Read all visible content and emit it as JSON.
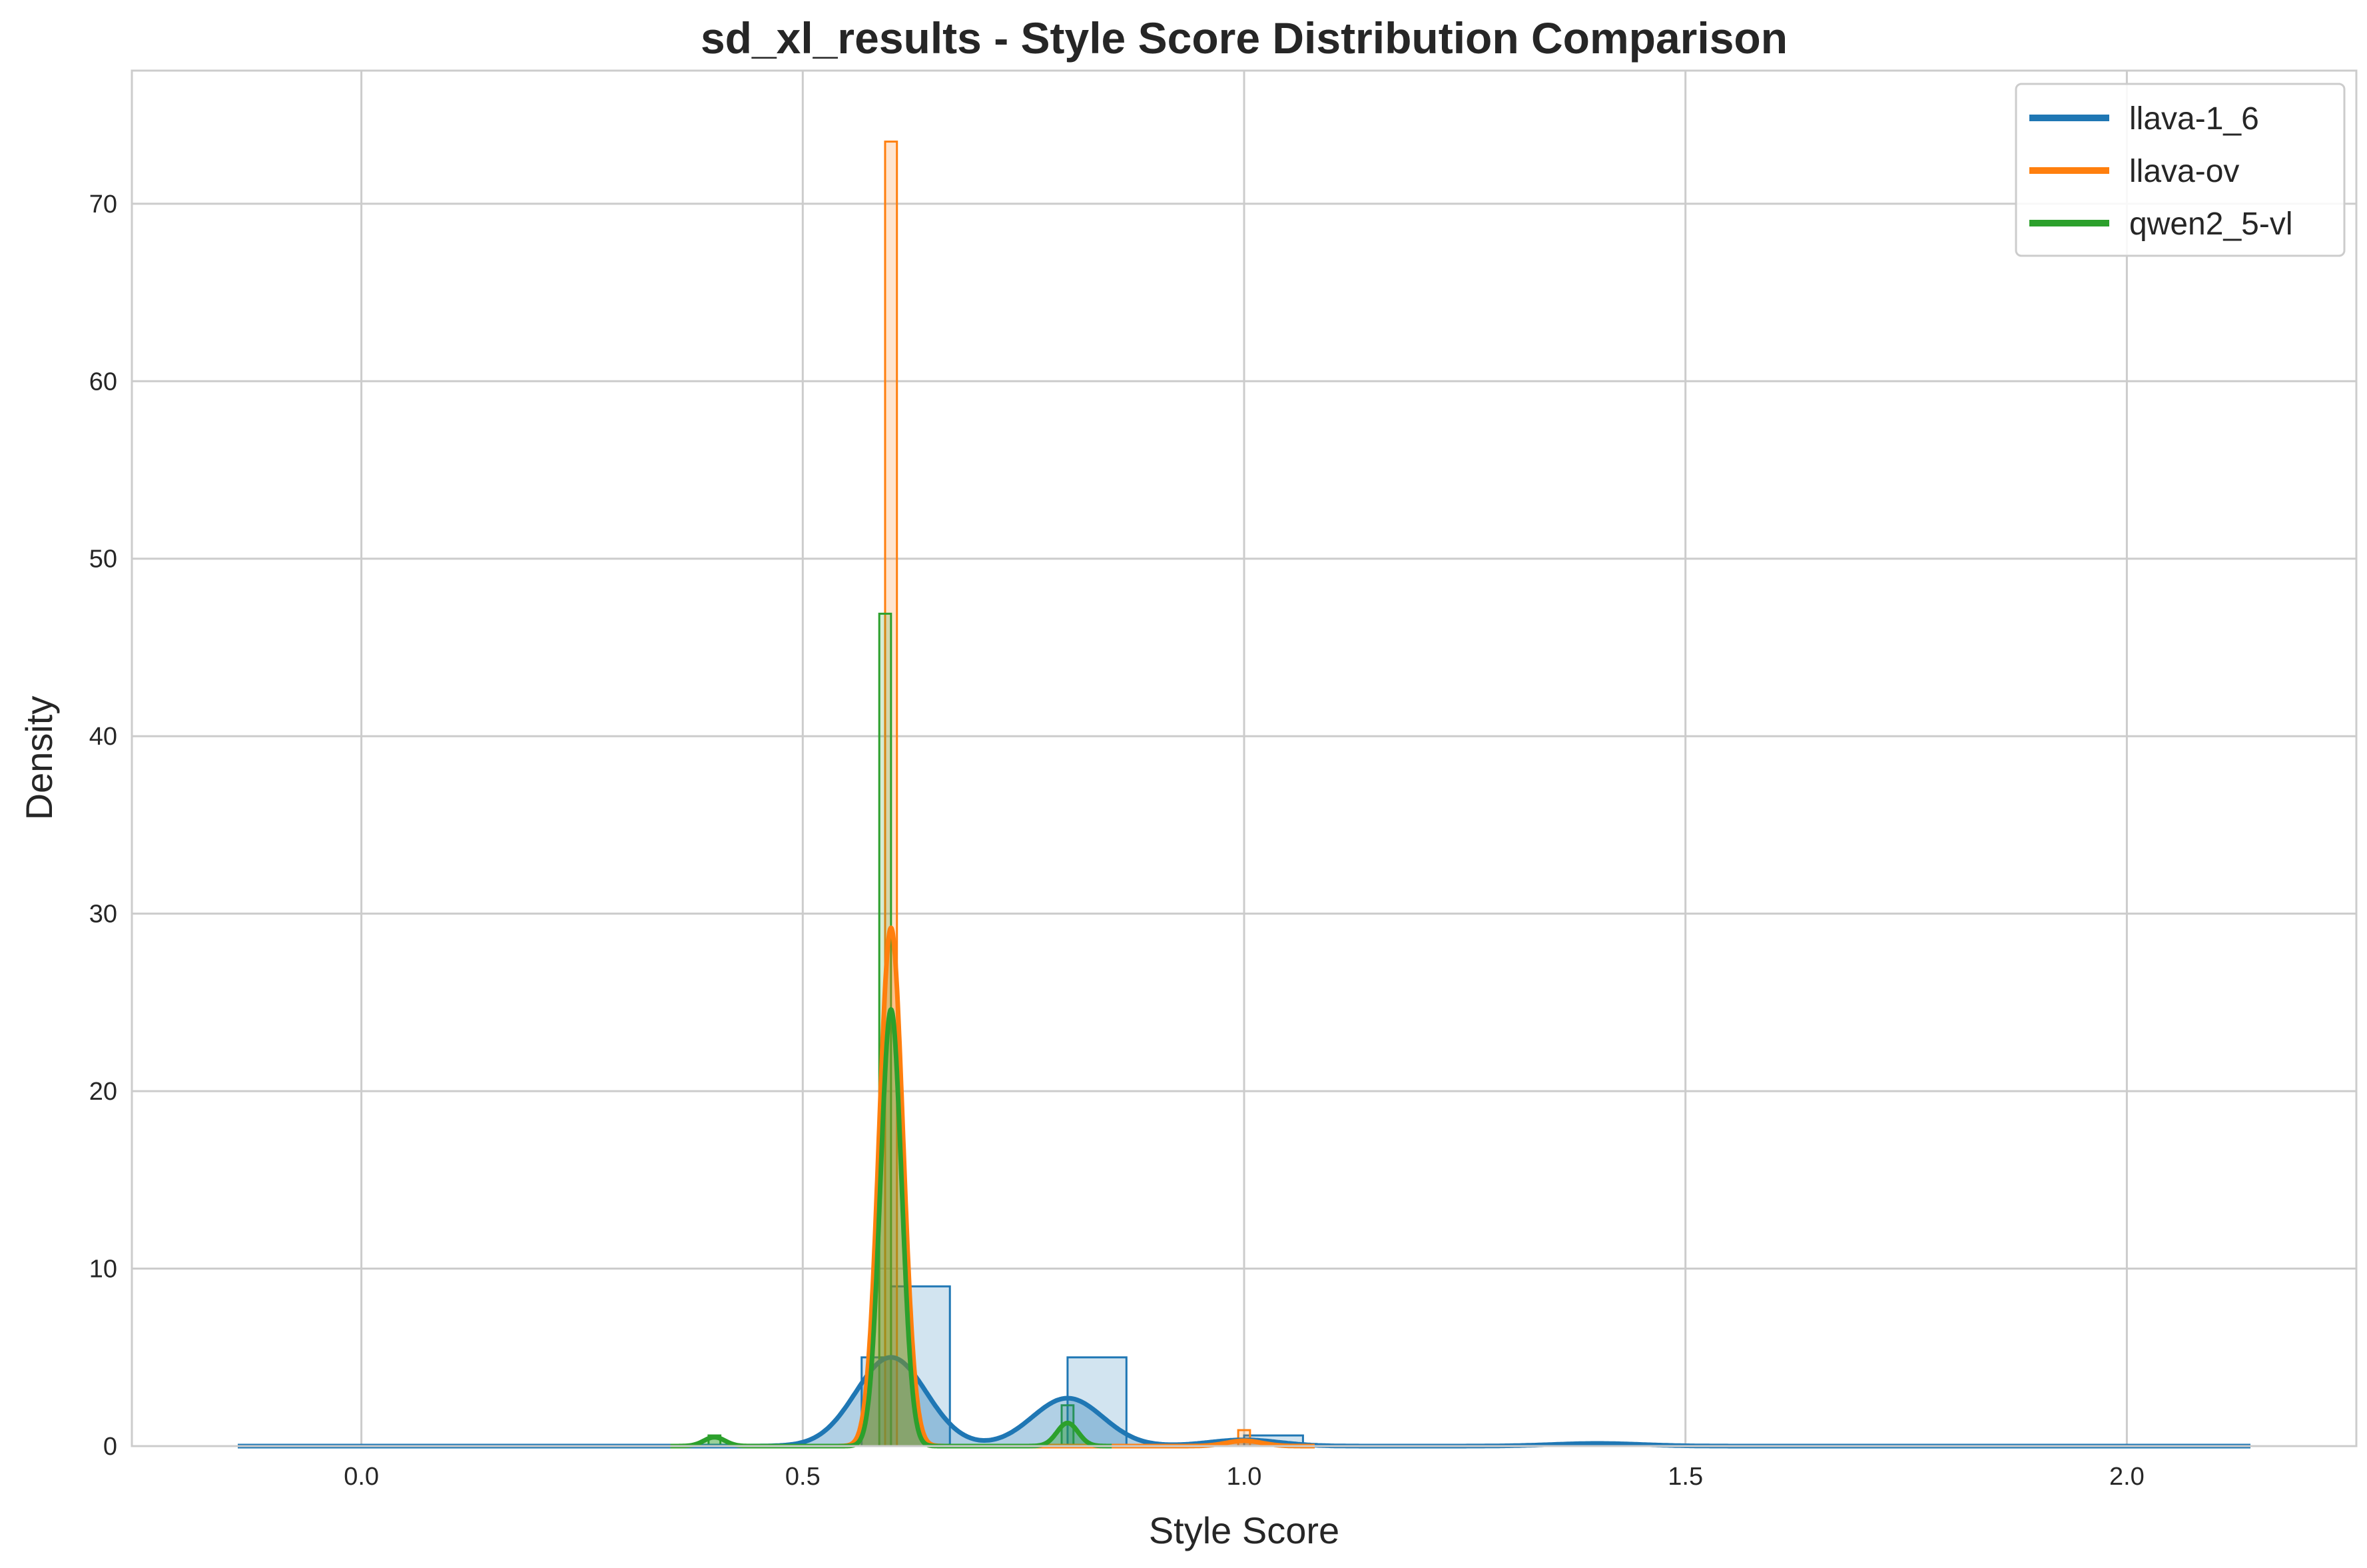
{
  "chart_data": {
    "type": "histogram+kde",
    "title": "sd_xl_results - Style Score Distribution Comparison",
    "xlabel": "Style Score",
    "ylabel": "Density",
    "xlim": [
      -0.26,
      2.26
    ],
    "ylim": [
      0,
      77.5
    ],
    "xticks": [
      "0.0",
      "0.5",
      "1.0",
      "1.5",
      "2.0"
    ],
    "xtick_values": [
      0.0,
      0.5,
      1.0,
      1.5,
      2.0
    ],
    "yticks": [
      "0",
      "10",
      "20",
      "30",
      "40",
      "50",
      "60",
      "70"
    ],
    "ytick_values": [
      0,
      10,
      20,
      30,
      40,
      50,
      60,
      70
    ],
    "grid": true,
    "legend_position": "top-right",
    "series": [
      {
        "name": "llava-1_6",
        "color": "#1f77b4",
        "bins": [
          {
            "x0": 0.5667,
            "x1": 0.6,
            "density": 5.0
          },
          {
            "x0": 0.6,
            "x1": 0.6667,
            "density": 9.0
          },
          {
            "x0": 0.8,
            "x1": 0.8667,
            "density": 5.0
          },
          {
            "x0": 1.0,
            "x1": 1.0667,
            "density": 0.6
          }
        ],
        "kde": [
          {
            "mu": 0.6,
            "sigma": 0.04,
            "peak": 5.0
          },
          {
            "mu": 0.8,
            "sigma": 0.04,
            "peak": 2.7
          },
          {
            "mu": 1.0,
            "sigma": 0.04,
            "peak": 0.35
          },
          {
            "mu": 1.4,
            "sigma": 0.05,
            "peak": 0.15
          }
        ],
        "kde_range": [
          -0.14,
          2.14
        ]
      },
      {
        "name": "llava-ov",
        "color": "#ff7f0e",
        "bins": [
          {
            "x0": 0.5933,
            "x1": 0.6067,
            "density": 73.5
          },
          {
            "x0": 0.9933,
            "x1": 1.0067,
            "density": 0.9
          }
        ],
        "kde": [
          {
            "mu": 0.6,
            "sigma": 0.0135,
            "peak": 29.2
          },
          {
            "mu": 1.0,
            "sigma": 0.02,
            "peak": 0.3
          }
        ],
        "kde_range": [
          0.52,
          1.08
        ]
      },
      {
        "name": "qwen2_5-vl",
        "color": "#2ca02c",
        "bins": [
          {
            "x0": 0.3933,
            "x1": 0.4067,
            "density": 0.6
          },
          {
            "x0": 0.5867,
            "x1": 0.6,
            "density": 46.9
          },
          {
            "x0": 0.7933,
            "x1": 0.8067,
            "density": 2.3
          }
        ],
        "kde": [
          {
            "mu": 0.4,
            "sigma": 0.012,
            "peak": 0.5
          },
          {
            "mu": 0.6,
            "sigma": 0.012,
            "peak": 24.6
          },
          {
            "mu": 0.8,
            "sigma": 0.012,
            "peak": 1.3
          }
        ],
        "kde_range": [
          0.35,
          0.85
        ]
      }
    ]
  }
}
